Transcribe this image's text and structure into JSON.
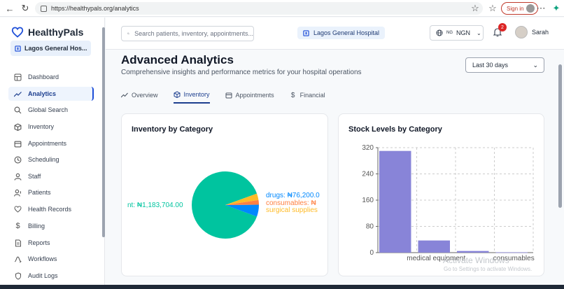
{
  "browser": {
    "url": "https://healthypals.org/analytics",
    "signin_label": "Sign in"
  },
  "sidebar": {
    "brand": "HealthyPals",
    "hospital": "Lagos General Hos...",
    "items": [
      {
        "label": "Dashboard",
        "icon": "grid-icon"
      },
      {
        "label": "Analytics",
        "icon": "trend-icon"
      },
      {
        "label": "Global Search",
        "icon": "search-icon"
      },
      {
        "label": "Inventory",
        "icon": "box-icon"
      },
      {
        "label": "Appointments",
        "icon": "calendar-icon"
      },
      {
        "label": "Scheduling",
        "icon": "clock-icon"
      },
      {
        "label": "Staff",
        "icon": "staff-icon"
      },
      {
        "label": "Patients",
        "icon": "patient-icon"
      },
      {
        "label": "Health Records",
        "icon": "heart-icon"
      },
      {
        "label": "Billing",
        "icon": "dollar-icon"
      },
      {
        "label": "Reports",
        "icon": "document-icon"
      },
      {
        "label": "Workflows",
        "icon": "workflow-icon"
      },
      {
        "label": "Audit Logs",
        "icon": "shield-icon"
      }
    ],
    "active_index": 1
  },
  "topbar": {
    "search_placeholder": "Search patients, inventory, appointments...",
    "hospital": "Lagos General Hospital",
    "currency_flag": "NG",
    "currency": "NGN",
    "notifications": "2",
    "user": "Sarah"
  },
  "page": {
    "title": "Advanced Analytics",
    "subtitle": "Comprehensive insights and performance metrics for your hospital operations",
    "range": "Last 30 days",
    "tabs": [
      "Overview",
      "Inventory",
      "Appointments",
      "Financial"
    ],
    "active_tab": 1
  },
  "chart_data": [
    {
      "type": "pie",
      "title": "Inventory by Category",
      "slices": [
        {
          "label": "medical equipment",
          "value": 1183704.0,
          "display": "nt: ₦1,183,704.00",
          "color": "#00c49f"
        },
        {
          "label": "drugs",
          "value": 76200.0,
          "display": "drugs: ₦76,200.0",
          "color": "#0088fe"
        },
        {
          "label": "consumables",
          "value": 30000,
          "display": "consumables: ₦",
          "color": "#ff8042"
        },
        {
          "label": "surgical supplies",
          "value": 42000,
          "display": "surgical supplies",
          "color": "#ffbb28"
        }
      ]
    },
    {
      "type": "bar",
      "title": "Stock Levels by Category",
      "categories": [
        "",
        "medical equipment",
        "",
        "consumables"
      ],
      "values": [
        310,
        37,
        5,
        1
      ],
      "ylim": [
        0,
        320
      ],
      "yticks": [
        "320",
        "240",
        "160",
        "80",
        "0"
      ],
      "grid": true,
      "color": "#8884d8"
    }
  ],
  "watermark": {
    "line1": "Activate Windows",
    "line2": "Go to Settings to activate Windows."
  }
}
